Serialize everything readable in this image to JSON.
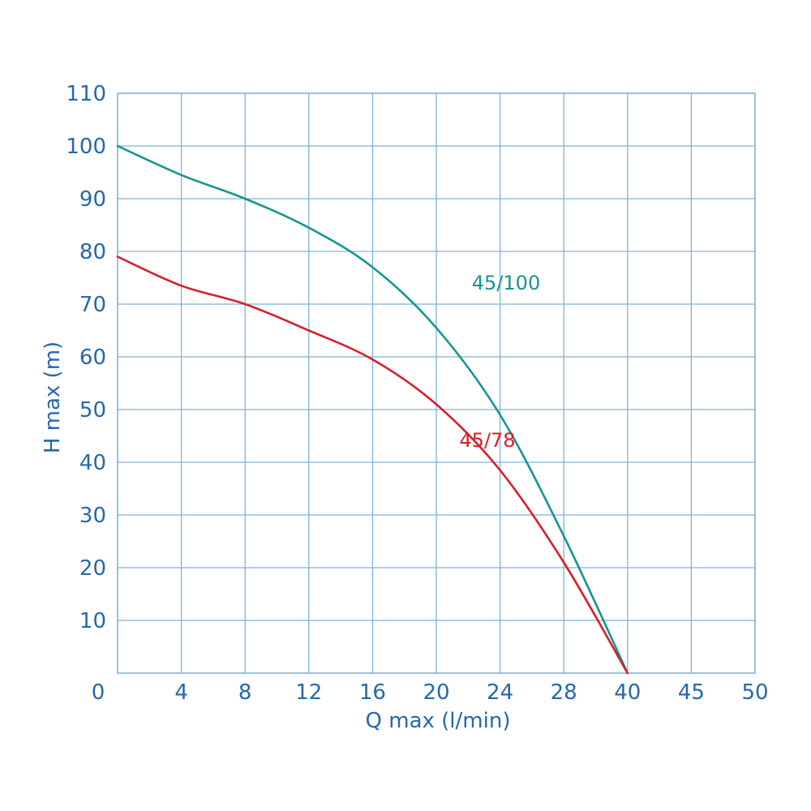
{
  "chart_data": {
    "type": "line",
    "title": "",
    "xlabel": "Q max (l/min)",
    "ylabel": "H max (m)",
    "x_ticks": [
      "0",
      "4",
      "8",
      "12",
      "16",
      "20",
      "24",
      "28",
      "40",
      "45",
      "50"
    ],
    "y_ticks": [
      "10",
      "20",
      "30",
      "40",
      "50",
      "60",
      "70",
      "80",
      "90",
      "100",
      "110"
    ],
    "ylim": [
      0,
      110
    ],
    "grid": true,
    "series": [
      {
        "name": "45/100",
        "color": "#17958f",
        "x_position": [
          0,
          1,
          2,
          3,
          4,
          5,
          6,
          7,
          8,
          9
        ],
        "values": [
          100,
          94.5,
          90,
          84.5,
          77,
          65.5,
          49,
          26,
          0,
          null
        ]
      },
      {
        "name": "45/78",
        "color": "#d4202b",
        "x_position": [
          0,
          1,
          2,
          3,
          4,
          5,
          6,
          7,
          8,
          9
        ],
        "values": [
          79,
          73.5,
          70,
          65,
          59.5,
          51,
          38.5,
          21,
          0,
          null
        ]
      }
    ]
  }
}
